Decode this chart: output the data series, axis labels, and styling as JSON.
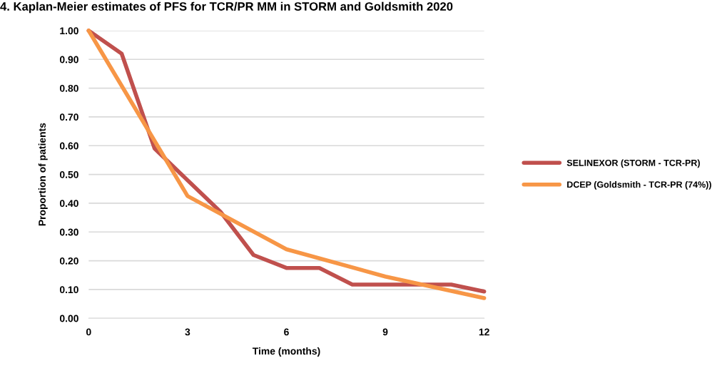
{
  "chart_data": {
    "type": "line",
    "title": "4. Kaplan-Meier estimates of PFS for TCR/PR MM in STORM and Goldsmith 2020",
    "xlabel": "Time (months)",
    "ylabel": "Proportion of patients",
    "series": [
      {
        "name": "SELINEXOR (STORM - TCR-PR)",
        "color": "#c0504d",
        "x": [
          0,
          1,
          2,
          3,
          4,
          5,
          6,
          7,
          8,
          9,
          10,
          11,
          12
        ],
        "values": [
          1.0,
          0.92,
          0.59,
          0.48,
          0.37,
          0.22,
          0.175,
          0.175,
          0.117,
          0.117,
          0.117,
          0.117,
          0.093
        ]
      },
      {
        "name": "DCEP (Goldsmith - TCR-PR (74%))",
        "color": "#f79646",
        "x": [
          0,
          3,
          6,
          9,
          12
        ],
        "values": [
          1.0,
          0.425,
          0.24,
          0.145,
          0.07
        ]
      }
    ],
    "xlim": [
      0,
      12
    ],
    "xticks": [
      0,
      3,
      6,
      9,
      12
    ],
    "ylim": [
      0,
      1
    ],
    "yticks": [
      {
        "value": 0,
        "label": "0.00"
      },
      {
        "value": 0.1,
        "label": "0.10"
      },
      {
        "value": 0.2,
        "label": "0.20"
      },
      {
        "value": 0.3,
        "label": "0.30"
      },
      {
        "value": 0.4,
        "label": "0.40"
      },
      {
        "value": 0.5,
        "label": "0.50"
      },
      {
        "value": 0.6,
        "label": "0.60"
      },
      {
        "value": 0.7,
        "label": "0.70"
      },
      {
        "value": 0.8,
        "label": "0.80"
      },
      {
        "value": 0.9,
        "label": "0.90"
      },
      {
        "value": 1,
        "label": "1.00"
      }
    ],
    "grid": "y",
    "legend": "right",
    "marker": "none",
    "line_style": "solid"
  }
}
